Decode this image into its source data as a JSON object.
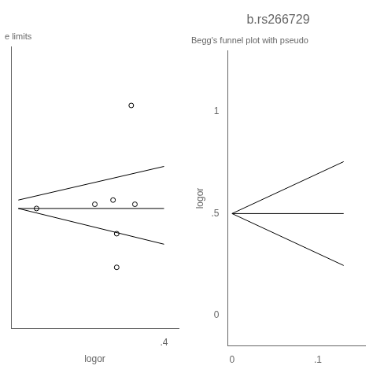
{
  "chart_data": [
    {
      "type": "scatter",
      "subtitle": "e limits",
      "xlabel": "logor",
      "xlim": [
        -0.02,
        0.44
      ],
      "xticks": [
        {
          "value": 0.4,
          "label": ".4"
        }
      ],
      "ylim": [
        0.25,
        0.92
      ],
      "tick_labels": "x",
      "grid": false,
      "series": [
        {
          "type": "scatter",
          "marker": "circle",
          "color": "#000000",
          "x": [
            0.05,
            0.21,
            0.26,
            0.27,
            0.27,
            0.31,
            0.32
          ],
          "values": [
            0.535,
            0.545,
            0.555,
            0.395,
            0.475,
            0.78,
            0.545
          ]
        },
        {
          "type": "line",
          "color": "#000000",
          "x": [
            0.0,
            0.4
          ],
          "values": [
            0.555,
            0.635
          ]
        },
        {
          "type": "line",
          "color": "#000000",
          "x": [
            0.0,
            0.4
          ],
          "values": [
            0.535,
            0.535
          ]
        },
        {
          "type": "line",
          "color": "#000000",
          "x": [
            0.0,
            0.4
          ],
          "values": [
            0.535,
            0.45
          ]
        }
      ]
    },
    {
      "type": "line",
      "title": "b.rs266729",
      "subtitle": "Begg's funnel plot with pseudo",
      "ylabel": "logor",
      "xlim": [
        -0.005,
        0.155
      ],
      "xticks": [
        0,
        {
          "value": 0.1,
          "label": ".1"
        }
      ],
      "ylim": [
        -0.15,
        1.3
      ],
      "yticks": [
        0,
        {
          "value": 0.5,
          "label": ".5"
        },
        1
      ],
      "grid": false,
      "series": [
        {
          "color": "#000000",
          "x": [
            0.0,
            0.13
          ],
          "values": [
            0.5,
            0.5
          ]
        },
        {
          "color": "#000000",
          "x": [
            0.0,
            0.13
          ],
          "values": [
            0.5,
            0.755
          ]
        },
        {
          "color": "#000000",
          "x": [
            0.0,
            0.13
          ],
          "values": [
            0.5,
            0.245
          ]
        }
      ]
    }
  ]
}
